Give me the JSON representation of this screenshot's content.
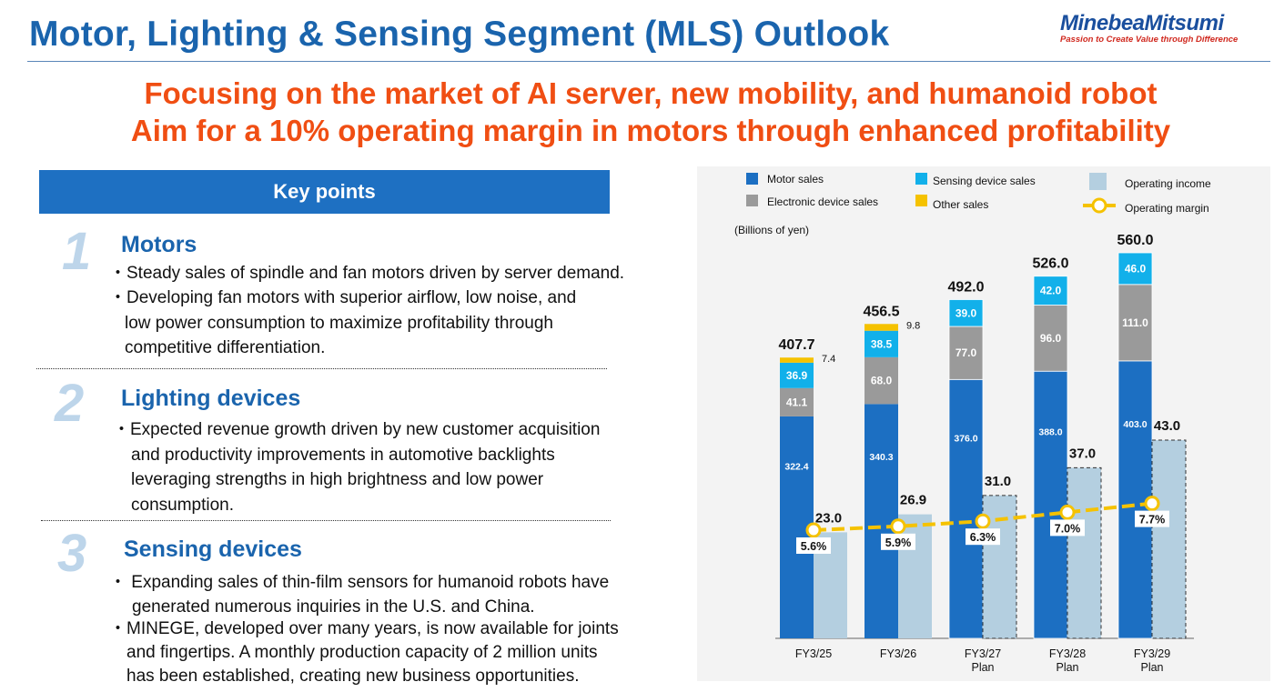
{
  "header": {
    "title": "Motor, Lighting & Sensing Segment (MLS) Outlook",
    "logo_name": "MinebeaMitsumi",
    "logo_tagline": "Passion to Create Value through Difference"
  },
  "headline": {
    "line1": "Focusing on the market of AI server, new mobility, and humanoid robot",
    "line2": "Aim for a 10% operating margin in motors through enhanced profitability"
  },
  "key_points": {
    "heading": "Key points",
    "sections": [
      {
        "number": "1",
        "title": "Motors",
        "bullets": [
          "・Steady sales of spindle and fan motors driven by server demand.",
          "・Developing fan motors with superior airflow, low noise, and",
          "low power consumption to maximize profitability through",
          "competitive differentiation."
        ]
      },
      {
        "number": "2",
        "title": "Lighting devices",
        "bullets": [
          "・Expected revenue growth driven by new customer acquisition",
          "and productivity improvements in automotive backlights",
          "leveraging strengths in high brightness and low power",
          "consumption."
        ]
      },
      {
        "number": "3",
        "title": "Sensing devices",
        "bullets": [
          "・ Expanding sales of thin-film sensors for humanoid robots have",
          "generated numerous inquiries in the U.S. and China.",
          "・MINEGE, developed over many years, is now available for joints",
          "and fingertips. A monthly production capacity of 2 million units",
          "has been established, creating new business opportunities."
        ]
      }
    ]
  },
  "chart_data": {
    "type": "bar",
    "unit_label": "(Billions of yen)",
    "categories": [
      [
        "FY3/25"
      ],
      [
        "FY3/26"
      ],
      [
        "FY3/27",
        "Plan"
      ],
      [
        "FY3/28",
        "Plan"
      ],
      [
        "FY3/29",
        "Plan"
      ]
    ],
    "plan_flags": [
      false,
      false,
      true,
      true,
      true
    ],
    "stacked_series": [
      {
        "name": "Motor sales",
        "color": "#1c6fc2",
        "values": [
          322.4,
          340.3,
          376.0,
          388.0,
          403.0
        ]
      },
      {
        "name": "Electronic device sales",
        "color": "#9a9a9a",
        "values": [
          41.1,
          68.0,
          77.0,
          96.0,
          111.0
        ]
      },
      {
        "name": "Sensing device sales",
        "color": "#12b0ea",
        "values": [
          36.9,
          38.5,
          39.0,
          42.0,
          46.0
        ]
      },
      {
        "name": "Other sales",
        "color": "#f5c200",
        "values": [
          7.4,
          9.8,
          null,
          null,
          null
        ]
      }
    ],
    "totals": [
      407.7,
      456.5,
      492.0,
      526.0,
      560.0
    ],
    "operating_income": {
      "name": "Operating income",
      "color": "#b4cfe0",
      "values": [
        23.0,
        26.9,
        31.0,
        37.0,
        43.0
      ]
    },
    "operating_margin": {
      "name": "Operating margin",
      "color": "#f5c200",
      "values": [
        5.6,
        5.9,
        6.3,
        7.0,
        7.7
      ],
      "labels": [
        "5.6%",
        "5.9%",
        "6.3%",
        "7.0%",
        "7.7%"
      ]
    },
    "legend": [
      {
        "name": "Motor sales",
        "color": "#1c6fc2",
        "shape": "square"
      },
      {
        "name": "Electronic device sales",
        "color": "#9a9a9a",
        "shape": "square"
      },
      {
        "name": "Sensing device sales",
        "color": "#12b0ea",
        "shape": "square"
      },
      {
        "name": "Other sales",
        "color": "#f5c200",
        "shape": "square"
      },
      {
        "name": "Operating income",
        "color": "#b4cfe0",
        "shape": "square"
      },
      {
        "name": "Operating margin",
        "color": "#f5c200",
        "shape": "line-marker"
      }
    ]
  }
}
